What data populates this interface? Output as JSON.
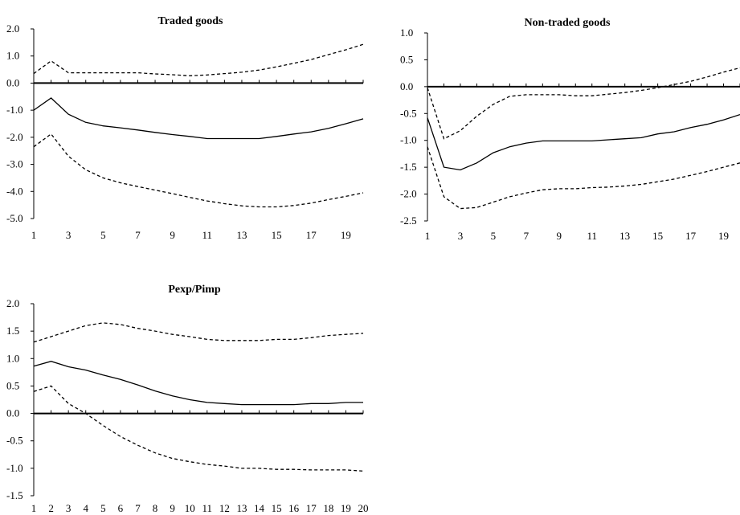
{
  "chart_data": [
    {
      "type": "line",
      "title": "Traded goods",
      "x": [
        1,
        2,
        3,
        4,
        5,
        6,
        7,
        8,
        9,
        10,
        11,
        12,
        13,
        14,
        15,
        16,
        17,
        18,
        19,
        20
      ],
      "x_tick_labels": [
        "1",
        "3",
        "5",
        "7",
        "9",
        "11",
        "13",
        "15",
        "17",
        "19"
      ],
      "ylim": [
        -5.0,
        2.0
      ],
      "y_tick_labels": [
        "2.0",
        "1.0",
        "0.0",
        "-1.0",
        "-2.0",
        "-3.0",
        "-4.0",
        "-5.0"
      ],
      "zero_line": true,
      "series": [
        {
          "style": "dashed",
          "values": [
            0.35,
            0.82,
            0.38,
            0.38,
            0.38,
            0.38,
            0.38,
            0.34,
            0.31,
            0.27,
            0.3,
            0.35,
            0.4,
            0.48,
            0.6,
            0.73,
            0.87,
            1.05,
            1.23,
            1.43
          ]
        },
        {
          "style": "solid",
          "values": [
            -1.0,
            -0.55,
            -1.15,
            -1.45,
            -1.58,
            -1.65,
            -1.73,
            -1.82,
            -1.9,
            -1.97,
            -2.05,
            -2.05,
            -2.05,
            -2.05,
            -1.97,
            -1.88,
            -1.8,
            -1.67,
            -1.5,
            -1.32
          ]
        },
        {
          "style": "dashed",
          "values": [
            -2.35,
            -1.88,
            -2.7,
            -3.2,
            -3.5,
            -3.68,
            -3.82,
            -3.95,
            -4.08,
            -4.22,
            -4.35,
            -4.45,
            -4.53,
            -4.57,
            -4.57,
            -4.52,
            -4.43,
            -4.3,
            -4.18,
            -4.05
          ]
        }
      ]
    },
    {
      "type": "line",
      "title": "Non-traded  goods",
      "x": [
        1,
        2,
        3,
        4,
        5,
        6,
        7,
        8,
        9,
        10,
        11,
        12,
        13,
        14,
        15,
        16,
        17,
        18,
        19,
        20
      ],
      "x_tick_labels": [
        "1",
        "3",
        "5",
        "7",
        "9",
        "11",
        "13",
        "15",
        "17",
        "19"
      ],
      "ylim": [
        -2.5,
        1.0
      ],
      "y_tick_labels": [
        "1.0",
        "0.5",
        "0.0",
        "-0.5",
        "-1.0",
        "-1.5",
        "-2.0",
        "-2.5"
      ],
      "zero_line": true,
      "series": [
        {
          "style": "dashed",
          "values": [
            -0.02,
            -0.97,
            -0.82,
            -0.55,
            -0.33,
            -0.18,
            -0.15,
            -0.15,
            -0.15,
            -0.17,
            -0.17,
            -0.14,
            -0.11,
            -0.07,
            -0.02,
            0.04,
            0.1,
            0.18,
            0.27,
            0.35
          ]
        },
        {
          "style": "solid",
          "values": [
            -0.58,
            -1.5,
            -1.55,
            -1.42,
            -1.23,
            -1.12,
            -1.05,
            -1.01,
            -1.01,
            -1.01,
            -1.01,
            -0.99,
            -0.97,
            -0.95,
            -0.88,
            -0.84,
            -0.76,
            -0.7,
            -0.62,
            -0.52
          ]
        },
        {
          "style": "dashed",
          "values": [
            -1.12,
            -2.05,
            -2.27,
            -2.25,
            -2.15,
            -2.05,
            -1.98,
            -1.92,
            -1.9,
            -1.9,
            -1.88,
            -1.87,
            -1.85,
            -1.82,
            -1.77,
            -1.72,
            -1.65,
            -1.58,
            -1.5,
            -1.42
          ]
        }
      ]
    },
    {
      "type": "line",
      "title": "Pexp/Pimp",
      "x": [
        1,
        2,
        3,
        4,
        5,
        6,
        7,
        8,
        9,
        10,
        11,
        12,
        13,
        14,
        15,
        16,
        17,
        18,
        19,
        20
      ],
      "x_tick_labels": [
        "1",
        "2",
        "3",
        "4",
        "5",
        "6",
        "7",
        "8",
        "9",
        "10",
        "11",
        "12",
        "13",
        "14",
        "15",
        "16",
        "17",
        "18",
        "19",
        "20"
      ],
      "ylim": [
        -1.5,
        2.0
      ],
      "y_tick_labels": [
        "2.0",
        "1.5",
        "1.0",
        "0.5",
        "0.0",
        "-0.5",
        "-1.0",
        "-1.5"
      ],
      "zero_line": true,
      "series": [
        {
          "style": "dashed",
          "values": [
            1.3,
            1.4,
            1.5,
            1.6,
            1.65,
            1.62,
            1.55,
            1.5,
            1.44,
            1.4,
            1.35,
            1.33,
            1.33,
            1.33,
            1.35,
            1.35,
            1.38,
            1.42,
            1.44,
            1.46
          ]
        },
        {
          "style": "solid",
          "values": [
            0.86,
            0.95,
            0.85,
            0.79,
            0.7,
            0.62,
            0.52,
            0.41,
            0.32,
            0.25,
            0.2,
            0.18,
            0.16,
            0.16,
            0.16,
            0.16,
            0.18,
            0.18,
            0.2,
            0.2
          ]
        },
        {
          "style": "dashed",
          "values": [
            0.4,
            0.5,
            0.18,
            0.0,
            -0.22,
            -0.42,
            -0.58,
            -0.72,
            -0.82,
            -0.88,
            -0.93,
            -0.96,
            -1.0,
            -1.0,
            -1.02,
            -1.02,
            -1.03,
            -1.03,
            -1.03,
            -1.05
          ]
        }
      ]
    }
  ]
}
